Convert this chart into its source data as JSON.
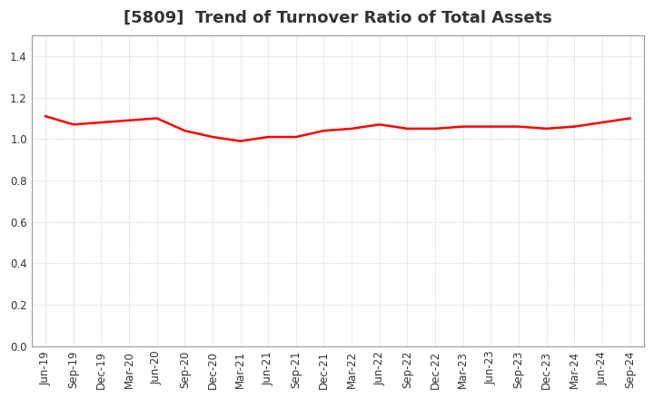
{
  "title": "[5809]  Trend of Turnover Ratio of Total Assets",
  "x_labels": [
    "Jun-19",
    "Sep-19",
    "Dec-19",
    "Mar-20",
    "Jun-20",
    "Sep-20",
    "Dec-20",
    "Mar-21",
    "Jun-21",
    "Sep-21",
    "Dec-21",
    "Mar-22",
    "Jun-22",
    "Sep-22",
    "Dec-22",
    "Mar-23",
    "Jun-23",
    "Sep-23",
    "Dec-23",
    "Mar-24",
    "Jun-24",
    "Sep-24"
  ],
  "values": [
    1.11,
    1.07,
    1.08,
    1.09,
    1.1,
    1.04,
    1.01,
    0.99,
    1.01,
    1.01,
    1.04,
    1.05,
    1.07,
    1.05,
    1.05,
    1.06,
    1.06,
    1.06,
    1.05,
    1.06,
    1.08,
    1.1
  ],
  "line_color": "#ff0000",
  "line_width": 1.8,
  "ylim": [
    0.0,
    1.5
  ],
  "yticks": [
    0.0,
    0.2,
    0.4,
    0.6,
    0.8,
    1.0,
    1.2,
    1.4
  ],
  "background_color": "#ffffff",
  "plot_bg_color": "#ffffff",
  "grid_color": "#bbbbbb",
  "title_fontsize": 13,
  "tick_fontsize": 8.5,
  "title_color": "#333333"
}
